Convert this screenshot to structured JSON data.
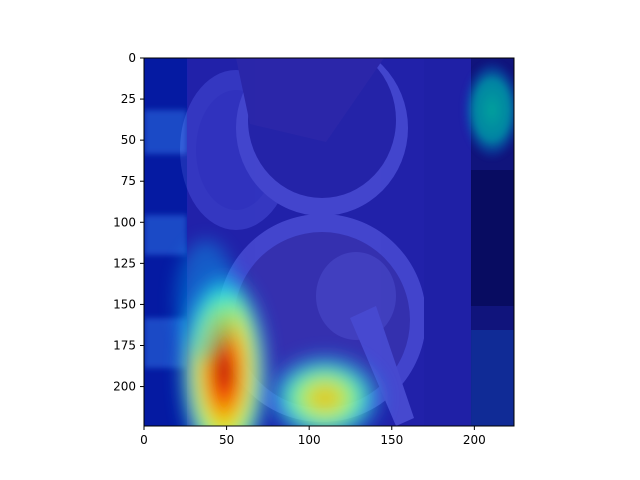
{
  "chart_data": {
    "type": "heatmap",
    "title": "",
    "xlabel": "",
    "ylabel": "",
    "xlim": [
      0,
      224
    ],
    "ylim": [
      224,
      0
    ],
    "x_ticks": [
      0,
      50,
      100,
      150,
      200
    ],
    "y_ticks": [
      0,
      25,
      50,
      75,
      100,
      125,
      150,
      175,
      200
    ],
    "x_tick_labels": [
      "0",
      "50",
      "100",
      "150",
      "200"
    ],
    "y_tick_labels": [
      "0",
      "25",
      "50",
      "75",
      "100",
      "125",
      "150",
      "175",
      "200"
    ],
    "colormap": "jet",
    "grid": false,
    "background_image": "overhead photo of food in paper bowls with a white plastic spoon",
    "heat_columns": [
      {
        "x0": 0,
        "x1": 26,
        "level": 0.22
      },
      {
        "x0": 26,
        "x1": 195,
        "level": 0.16
      },
      {
        "x0": 195,
        "x1": 224,
        "level": 0.06
      }
    ],
    "hotspots": [
      {
        "name": "left-bowl-edge",
        "x": 48,
        "y": 190,
        "rx": 24,
        "ry": 48,
        "level": 1.0
      },
      {
        "name": "spoon-base",
        "x": 110,
        "y": 208,
        "rx": 30,
        "ry": 22,
        "level": 0.7
      },
      {
        "name": "upper-right",
        "x": 212,
        "y": 38,
        "rx": 14,
        "ry": 22,
        "level": 0.42
      }
    ]
  }
}
